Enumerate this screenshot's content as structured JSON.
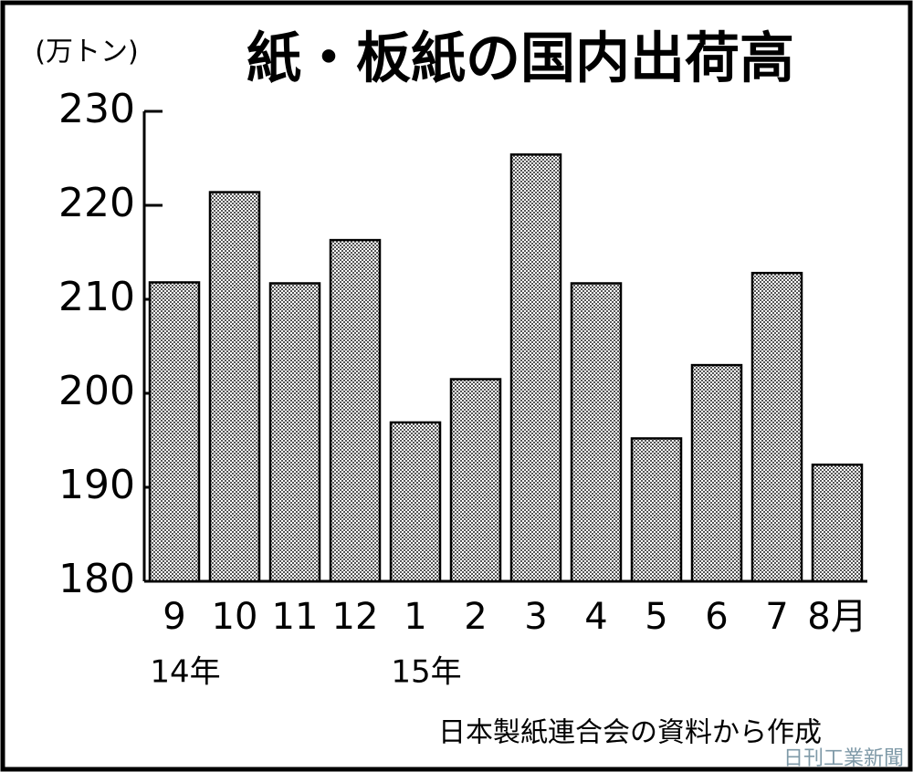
{
  "chart_data": {
    "type": "bar",
    "title": "紙・板紙の国内出荷高",
    "y_unit": "(万トン)",
    "categories": [
      "9",
      "10",
      "11",
      "12",
      "1",
      "2",
      "3",
      "4",
      "5",
      "6",
      "7",
      "8月"
    ],
    "year_labels": [
      "14年",
      null,
      null,
      null,
      "15年",
      null,
      null,
      null,
      null,
      null,
      null,
      null
    ],
    "values": [
      211.8,
      221.4,
      211.7,
      216.3,
      196.9,
      201.5,
      225.4,
      211.7,
      195.2,
      203.0,
      212.8,
      192.4
    ],
    "color": "#8c8c8c",
    "ylim": [
      180,
      230
    ],
    "yticks": [
      180,
      190,
      200,
      210,
      220,
      230
    ],
    "source": "日本製紙連合会の資料から作成",
    "credit": "日刊工業新聞"
  }
}
